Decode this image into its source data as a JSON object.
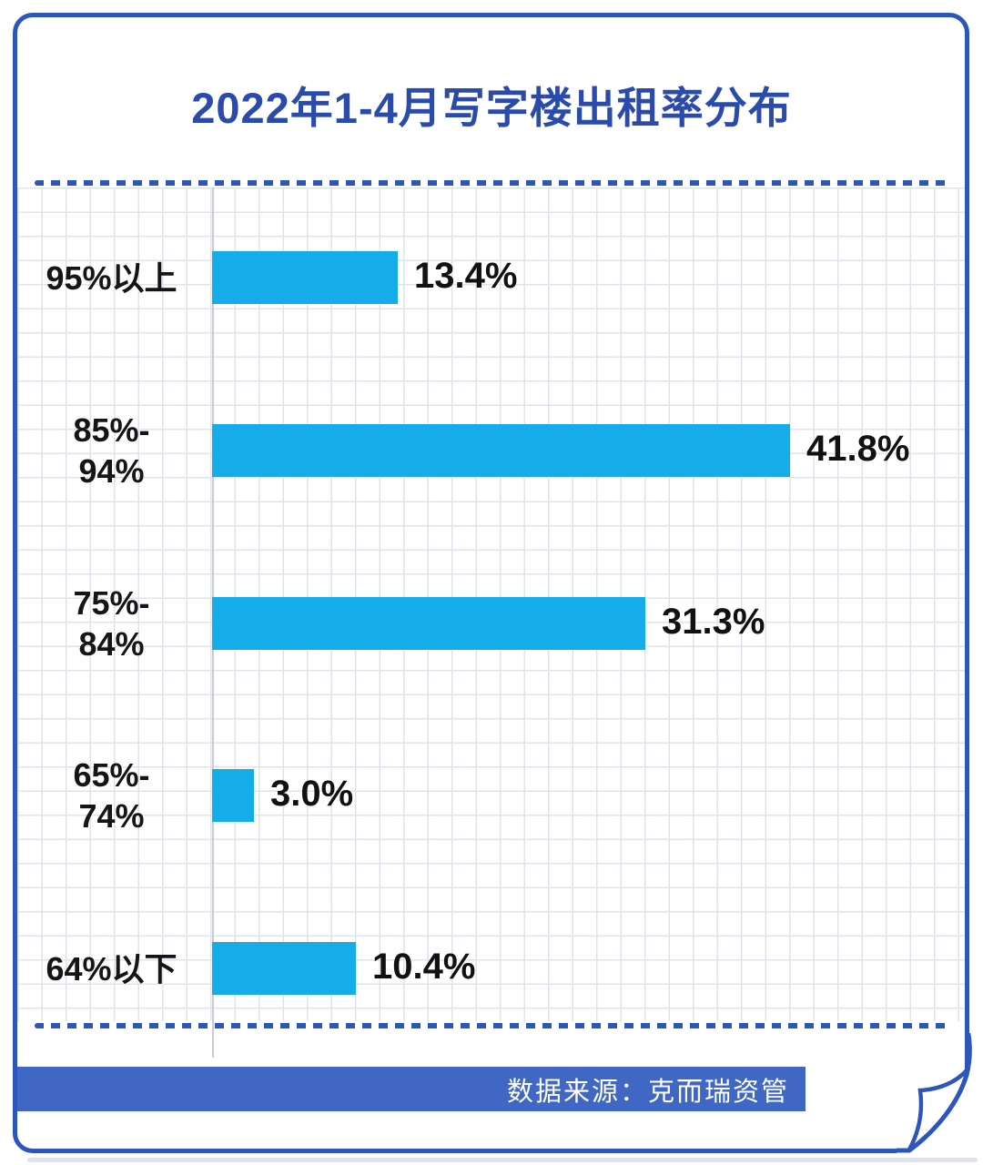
{
  "title": "2022年1-4月写字楼出租率分布",
  "source": {
    "label": "数据来源：克而瑞资管"
  },
  "colors": {
    "frame_blue": "#2d56bb",
    "title_blue": "#2b4bab",
    "badge_blue": "#4067c3",
    "bar_cyan": "#15ade9"
  },
  "chart_data": {
    "type": "bar",
    "orientation": "horizontal",
    "title": "2022年1-4月写字楼出租率分布",
    "categories": [
      "95%以上",
      "85%-94%",
      "75%-84%",
      "65%-74%",
      "64%以下"
    ],
    "category_lines": [
      [
        "95%以上"
      ],
      [
        "85%-",
        "94%"
      ],
      [
        "75%-",
        "84%"
      ],
      [
        "65%-",
        "74%"
      ],
      [
        "64%以下"
      ]
    ],
    "values": [
      13.4,
      41.8,
      31.3,
      3.0,
      10.4
    ],
    "value_labels": [
      "13.4%",
      "41.8%",
      "31.3%",
      "3.0%",
      "10.4%"
    ],
    "xlabel": "",
    "ylabel": "",
    "xlim": [
      0,
      45
    ],
    "grid": true,
    "legend": false,
    "bar_color": "#15ade9",
    "source_note": "数据来源：克而瑞资管"
  }
}
